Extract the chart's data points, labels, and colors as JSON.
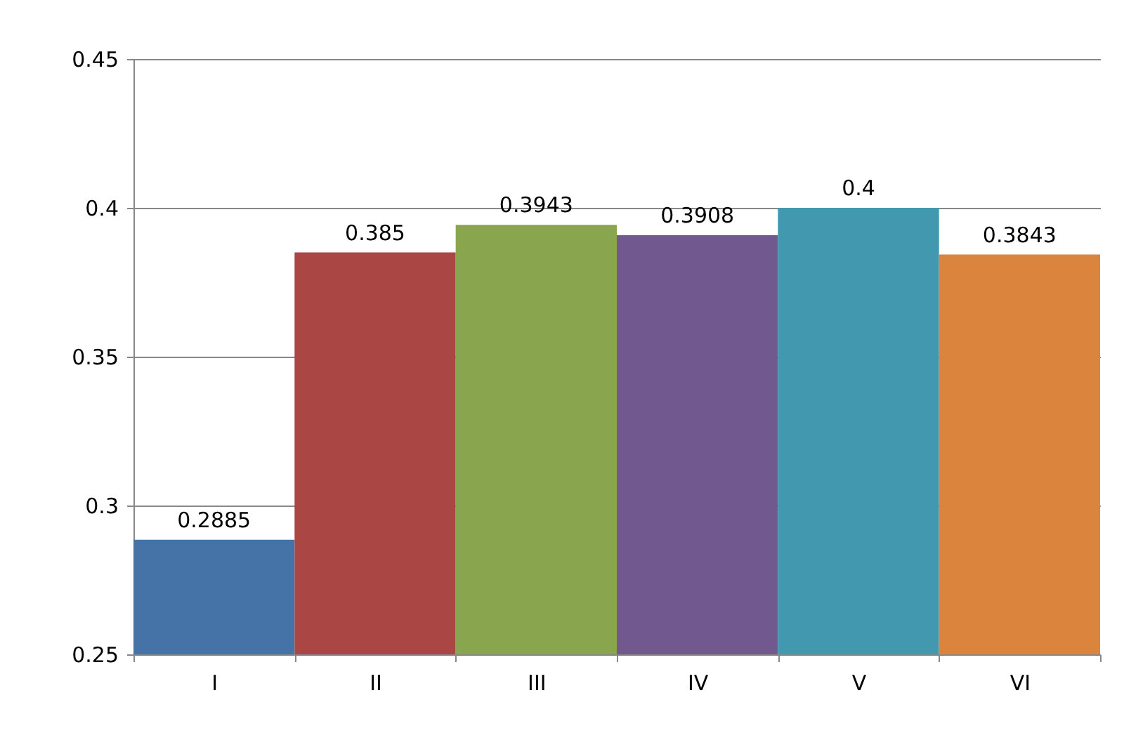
{
  "chart_data": {
    "type": "bar",
    "categories": [
      "I",
      "II",
      "III",
      "IV",
      "V",
      "VI"
    ],
    "values": [
      0.2885,
      0.385,
      0.3943,
      0.3908,
      0.4,
      0.3843
    ],
    "colors": [
      "#4572a7",
      "#aa4643",
      "#89a54e",
      "#71588f",
      "#4198af",
      "#db843d"
    ],
    "ylim": [
      0.25,
      0.45
    ],
    "yticks": [
      0.25,
      0.3,
      0.35,
      0.4,
      0.45
    ],
    "grid": "y",
    "data_labels": true
  }
}
